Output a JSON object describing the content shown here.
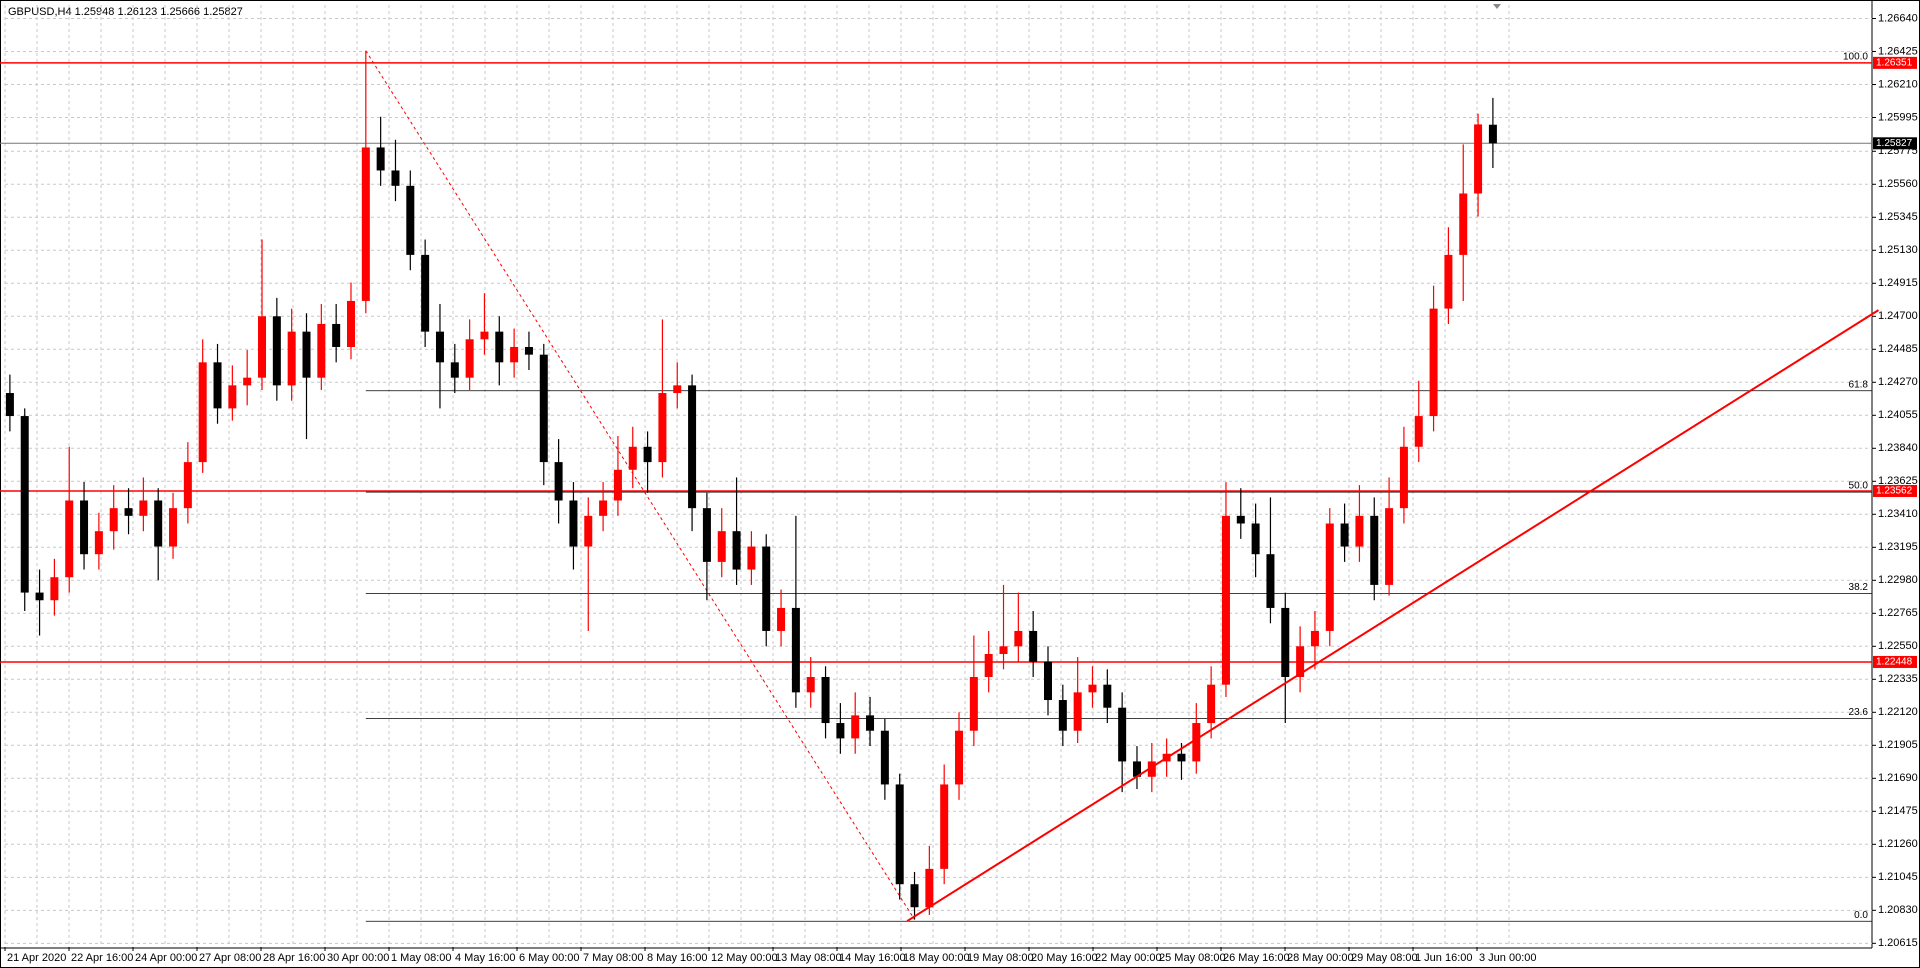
{
  "chart_data": {
    "type": "candlestick",
    "title": "GBPUSD,H4  1.25948 1.26123 1.25666 1.25827",
    "up_color": "#ff0000",
    "down_color": "#000000",
    "ylim": [
      1.20591,
      1.26728
    ],
    "yticks": [
      {
        "value": 1.2664,
        "label": "1.26640"
      },
      1.26425,
      {
        "value": 1.2621,
        "label": "1.26210"
      },
      1.25995,
      1.25775,
      {
        "value": 1.2556,
        "label": "1.25560"
      },
      1.25345,
      {
        "value": 1.2513,
        "label": "1.25130"
      },
      1.24915,
      {
        "value": 1.247,
        "label": "1.24700"
      },
      1.24485,
      {
        "value": 1.2427,
        "label": "1.24270"
      },
      1.24055,
      {
        "value": 1.2384,
        "label": "1.23840"
      },
      1.23625,
      {
        "value": 1.2341,
        "label": "1.23410"
      },
      1.23195,
      {
        "value": 1.2298,
        "label": "1.22980"
      },
      1.22765,
      {
        "value": 1.2255,
        "label": "1.22550"
      },
      1.22335,
      {
        "value": 1.2212,
        "label": "1.22120"
      },
      1.21905,
      {
        "value": 1.2169,
        "label": "1.21690"
      },
      1.21475,
      {
        "value": 1.2126,
        "label": "1.21260"
      },
      1.21045,
      {
        "value": 1.2083,
        "label": "1.20830"
      },
      1.20615
    ],
    "grid": true,
    "x_labels": [
      "21 Apr 2020",
      "22 Apr 16:00",
      "24 Apr 00:00",
      "27 Apr 08:00",
      "28 Apr 16:00",
      "30 Apr 00:00",
      "1 May 08:00",
      "4 May 16:00",
      "6 May 00:00",
      "7 May 08:00",
      "8 May 16:00",
      "12 May 00:00",
      "13 May 08:00",
      "14 May 16:00",
      "18 May 00:00",
      "19 May 08:00",
      "20 May 16:00",
      "22 May 00:00",
      "25 May 08:00",
      "26 May 16:00",
      "28 May 00:00",
      "29 May 08:00",
      "1 Jun 16:00",
      "3 Jun 00:00"
    ],
    "ohlc": [
      [
        1.242,
        1.2432,
        1.2395,
        1.2405
      ],
      [
        1.2405,
        1.241,
        1.2278,
        1.229
      ],
      [
        1.229,
        1.2305,
        1.2262,
        1.2285
      ],
      [
        1.2285,
        1.2312,
        1.2275,
        1.23
      ],
      [
        1.23,
        1.2385,
        1.229,
        1.235
      ],
      [
        1.235,
        1.2362,
        1.2305,
        1.2315
      ],
      [
        1.2315,
        1.2342,
        1.2305,
        1.233
      ],
      [
        1.233,
        1.236,
        1.2318,
        1.2345
      ],
      [
        1.2345,
        1.2358,
        1.2328,
        1.234
      ],
      [
        1.234,
        1.2365,
        1.233,
        1.235
      ],
      [
        1.235,
        1.2358,
        1.2298,
        1.232
      ],
      [
        1.232,
        1.2355,
        1.2312,
        1.2345
      ],
      [
        1.2345,
        1.2388,
        1.2335,
        1.2375
      ],
      [
        1.2375,
        1.2455,
        1.2368,
        1.244
      ],
      [
        1.244,
        1.2452,
        1.24,
        1.241
      ],
      [
        1.241,
        1.2438,
        1.2402,
        1.2425
      ],
      [
        1.2425,
        1.2448,
        1.2412,
        1.243
      ],
      [
        1.243,
        1.252,
        1.2422,
        1.247
      ],
      [
        1.247,
        1.2482,
        1.2415,
        1.2425
      ],
      [
        1.2425,
        1.2475,
        1.2415,
        1.246
      ],
      [
        1.246,
        1.2472,
        1.239,
        1.243
      ],
      [
        1.243,
        1.2478,
        1.2422,
        1.2465
      ],
      [
        1.2465,
        1.2478,
        1.244,
        1.245
      ],
      [
        1.245,
        1.2492,
        1.2442,
        1.248
      ],
      [
        1.248,
        1.2643,
        1.2472,
        1.258
      ],
      [
        1.258,
        1.26,
        1.2555,
        1.2565
      ],
      [
        1.2565,
        1.2585,
        1.2545,
        1.2555
      ],
      [
        1.2555,
        1.2565,
        1.25,
        1.251
      ],
      [
        1.251,
        1.252,
        1.245,
        1.246
      ],
      [
        1.246,
        1.2478,
        1.241,
        1.244
      ],
      [
        1.244,
        1.2452,
        1.242,
        1.243
      ],
      [
        1.243,
        1.2468,
        1.2422,
        1.2455
      ],
      [
        1.2455,
        1.2485,
        1.2445,
        1.246
      ],
      [
        1.246,
        1.247,
        1.2425,
        1.244
      ],
      [
        1.244,
        1.2462,
        1.243,
        1.245
      ],
      [
        1.245,
        1.246,
        1.2435,
        1.2445
      ],
      [
        1.2445,
        1.2452,
        1.236,
        1.2375
      ],
      [
        1.2375,
        1.239,
        1.2335,
        1.235
      ],
      [
        1.235,
        1.2362,
        1.2305,
        1.232
      ],
      [
        1.232,
        1.2352,
        1.2265,
        1.234
      ],
      [
        1.234,
        1.2362,
        1.233,
        1.235
      ],
      [
        1.235,
        1.2392,
        1.234,
        1.237
      ],
      [
        1.237,
        1.2398,
        1.2358,
        1.2385
      ],
      [
        1.2385,
        1.2395,
        1.2355,
        1.2375
      ],
      [
        1.2375,
        1.2468,
        1.2365,
        1.242
      ],
      [
        1.242,
        1.244,
        1.241,
        1.2425
      ],
      [
        1.2425,
        1.2432,
        1.233,
        1.2345
      ],
      [
        1.2345,
        1.2355,
        1.2285,
        1.231
      ],
      [
        1.231,
        1.2345,
        1.23,
        1.233
      ],
      [
        1.233,
        1.2365,
        1.2295,
        1.2305
      ],
      [
        1.2305,
        1.233,
        1.2295,
        1.232
      ],
      [
        1.232,
        1.2328,
        1.2255,
        1.2265
      ],
      [
        1.2265,
        1.2292,
        1.2255,
        1.228
      ],
      [
        1.228,
        1.234,
        1.2215,
        1.2225
      ],
      [
        1.2225,
        1.2248,
        1.2215,
        1.2235
      ],
      [
        1.2235,
        1.2242,
        1.2195,
        1.2205
      ],
      [
        1.2205,
        1.2218,
        1.2185,
        1.2195
      ],
      [
        1.2195,
        1.2225,
        1.2185,
        1.221
      ],
      [
        1.221,
        1.2222,
        1.219,
        1.22
      ],
      [
        1.22,
        1.2208,
        1.2155,
        1.2165
      ],
      [
        1.2165,
        1.2172,
        1.209,
        1.21
      ],
      [
        1.21,
        1.2108,
        1.2077,
        1.2085
      ],
      [
        1.2085,
        1.2125,
        1.208,
        1.211
      ],
      [
        1.211,
        1.2178,
        1.21,
        1.2165
      ],
      [
        1.2165,
        1.2212,
        1.2155,
        1.22
      ],
      [
        1.22,
        1.2262,
        1.219,
        1.2235
      ],
      [
        1.2235,
        1.2265,
        1.2225,
        1.225
      ],
      [
        1.225,
        1.2295,
        1.224,
        1.2255
      ],
      [
        1.2255,
        1.229,
        1.2245,
        1.2265
      ],
      [
        1.2265,
        1.2278,
        1.2235,
        1.2245
      ],
      [
        1.2245,
        1.2255,
        1.221,
        1.222
      ],
      [
        1.222,
        1.223,
        1.219,
        1.22
      ],
      [
        1.22,
        1.2248,
        1.2192,
        1.2225
      ],
      [
        1.2225,
        1.2242,
        1.2215,
        1.223
      ],
      [
        1.223,
        1.224,
        1.2205,
        1.2215
      ],
      [
        1.2215,
        1.2225,
        1.216,
        1.218
      ],
      [
        1.218,
        1.219,
        1.2162,
        1.217
      ],
      [
        1.217,
        1.2192,
        1.216,
        1.218
      ],
      [
        1.218,
        1.2195,
        1.217,
        1.2185
      ],
      [
        1.2185,
        1.2192,
        1.2168,
        1.218
      ],
      [
        1.218,
        1.2218,
        1.2172,
        1.2205
      ],
      [
        1.2205,
        1.2242,
        1.2195,
        1.223
      ],
      [
        1.223,
        1.2362,
        1.2222,
        1.234
      ],
      [
        1.234,
        1.2358,
        1.2325,
        1.2335
      ],
      [
        1.2335,
        1.2348,
        1.23,
        1.2315
      ],
      [
        1.2315,
        1.2352,
        1.227,
        1.228
      ],
      [
        1.228,
        1.229,
        1.2205,
        1.2235
      ],
      [
        1.2235,
        1.2268,
        1.2225,
        1.2255
      ],
      [
        1.2255,
        1.2278,
        1.224,
        1.2265
      ],
      [
        1.2265,
        1.2345,
        1.2255,
        1.2335
      ],
      [
        1.2335,
        1.2348,
        1.231,
        1.232
      ],
      [
        1.232,
        1.236,
        1.231,
        1.234
      ],
      [
        1.234,
        1.2352,
        1.2285,
        1.2295
      ],
      [
        1.2295,
        1.2365,
        1.2288,
        1.2345
      ],
      [
        1.2345,
        1.2398,
        1.2335,
        1.2385
      ],
      [
        1.2385,
        1.2428,
        1.2375,
        1.2405
      ],
      [
        1.2405,
        1.249,
        1.2395,
        1.2475
      ],
      [
        1.2475,
        1.2528,
        1.2465,
        1.251
      ],
      [
        1.251,
        1.2582,
        1.248,
        1.255
      ],
      [
        1.255,
        1.2602,
        1.2535,
        1.2595
      ],
      [
        1.25948,
        1.26123,
        1.25666,
        1.25827
      ]
    ],
    "hlines": [
      1.26351,
      1.23562,
      1.22448
    ],
    "hline_color": "#ff0000",
    "current_price": 1.25827,
    "fib_levels": [
      {
        "label": "100.0",
        "price": 1.26351
      },
      {
        "label": "61.8",
        "price": 1.24215
      },
      {
        "label": "50.0",
        "price": 1.23555
      },
      {
        "label": "38.2",
        "price": 1.22895
      },
      {
        "label": "23.6",
        "price": 1.22079
      },
      {
        "label": "0.0",
        "price": 1.20759
      }
    ],
    "fib_start": 24,
    "fib_trend": {
      "x": [
        24,
        61
      ],
      "y": [
        1.2643,
        1.2077
      ]
    },
    "trendline": {
      "x": [
        60.5,
        126
      ],
      "y": [
        1.2076,
        1.2474
      ]
    }
  }
}
